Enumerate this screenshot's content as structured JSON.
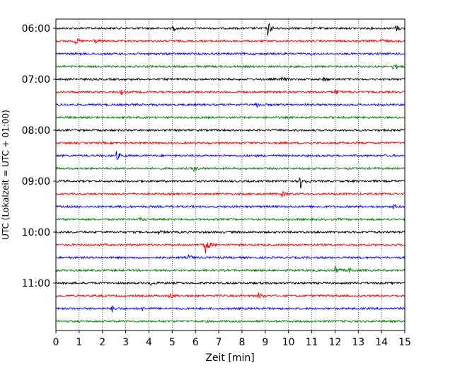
{
  "chart_data": {
    "type": "line",
    "xlabel": "Zeit  [min]",
    "ylabel": "UTC (Lokalzeit = UTC + 01:00)",
    "xlim": [
      0,
      15
    ],
    "x_ticks": [
      0,
      1,
      2,
      3,
      4,
      5,
      6,
      7,
      8,
      9,
      10,
      11,
      12,
      13,
      14,
      15
    ],
    "x_tick_labels": [
      "0",
      "1",
      "2",
      "3",
      "4",
      "5",
      "6",
      "7",
      "8",
      "9",
      "10",
      "11",
      "12",
      "13",
      "14",
      "15"
    ],
    "y_tick_labels": [
      "06:00",
      "07:00",
      "08:00",
      "09:00",
      "10:00",
      "11:00"
    ],
    "y_tick_rows": [
      0,
      4,
      8,
      12,
      16,
      20
    ],
    "grid": "vertical dotted",
    "colors": [
      "#000000",
      "#ff0000",
      "#0000ff",
      "#008000"
    ],
    "series": [
      {
        "start": "06:00",
        "color": "#000000",
        "events": [
          {
            "x": 9.1,
            "amp": 11
          },
          {
            "x": 5.0,
            "amp": 4
          },
          {
            "x": 14.6,
            "amp": 5
          }
        ]
      },
      {
        "start": "06:15",
        "color": "#ff0000",
        "events": [
          {
            "x": 0.8,
            "amp": 6
          },
          {
            "x": 1.6,
            "amp": 4
          },
          {
            "x": 14.0,
            "amp": 3
          }
        ]
      },
      {
        "start": "06:30",
        "color": "#0000ff",
        "events": []
      },
      {
        "start": "06:45",
        "color": "#008000",
        "events": [
          {
            "x": 14.5,
            "amp": 7
          }
        ]
      },
      {
        "start": "07:00",
        "color": "#000000",
        "events": [
          {
            "x": 9.7,
            "amp": 4
          },
          {
            "x": 11.5,
            "amp": 3
          }
        ]
      },
      {
        "start": "07:15",
        "color": "#ff0000",
        "events": [
          {
            "x": 2.8,
            "amp": 3
          },
          {
            "x": 12.0,
            "amp": 4
          }
        ]
      },
      {
        "start": "07:30",
        "color": "#0000ff",
        "events": [
          {
            "x": 8.6,
            "amp": 4
          }
        ]
      },
      {
        "start": "07:45",
        "color": "#008000",
        "events": []
      },
      {
        "start": "08:00",
        "color": "#000000",
        "events": []
      },
      {
        "start": "08:15",
        "color": "#ff0000",
        "events": []
      },
      {
        "start": "08:30",
        "color": "#0000ff",
        "events": [
          {
            "x": 2.6,
            "amp": 6
          }
        ]
      },
      {
        "start": "08:45",
        "color": "#008000",
        "events": [
          {
            "x": 5.9,
            "amp": 4
          }
        ]
      },
      {
        "start": "09:00",
        "color": "#000000",
        "events": [
          {
            "x": 10.5,
            "amp": 12
          }
        ]
      },
      {
        "start": "09:15",
        "color": "#ff0000",
        "events": [
          {
            "x": 9.7,
            "amp": 4
          }
        ]
      },
      {
        "start": "09:30",
        "color": "#0000ff",
        "events": [
          {
            "x": 14.5,
            "amp": 3
          }
        ]
      },
      {
        "start": "09:45",
        "color": "#008000",
        "events": [
          {
            "x": 3.6,
            "amp": 3
          }
        ]
      },
      {
        "start": "10:00",
        "color": "#000000",
        "events": [
          {
            "x": 4.4,
            "amp": 3
          }
        ]
      },
      {
        "start": "10:15",
        "color": "#ff0000",
        "events": [
          {
            "x": 6.4,
            "amp": 15
          }
        ]
      },
      {
        "start": "10:30",
        "color": "#0000ff",
        "events": [
          {
            "x": 5.7,
            "amp": 4
          }
        ]
      },
      {
        "start": "10:45",
        "color": "#008000",
        "events": [
          {
            "x": 12.0,
            "amp": 7
          },
          {
            "x": 12.6,
            "amp": 4
          }
        ]
      },
      {
        "start": "11:00",
        "color": "#000000",
        "events": [
          {
            "x": 4.0,
            "amp": 4
          }
        ]
      },
      {
        "start": "11:15",
        "color": "#ff0000",
        "events": [
          {
            "x": 4.9,
            "amp": 4
          },
          {
            "x": 8.7,
            "amp": 5
          }
        ]
      },
      {
        "start": "11:30",
        "color": "#0000ff",
        "events": [
          {
            "x": 2.4,
            "amp": 5
          },
          {
            "x": 3.7,
            "amp": 3
          }
        ]
      },
      {
        "start": "11:45",
        "color": "#008000",
        "events": []
      }
    ]
  }
}
